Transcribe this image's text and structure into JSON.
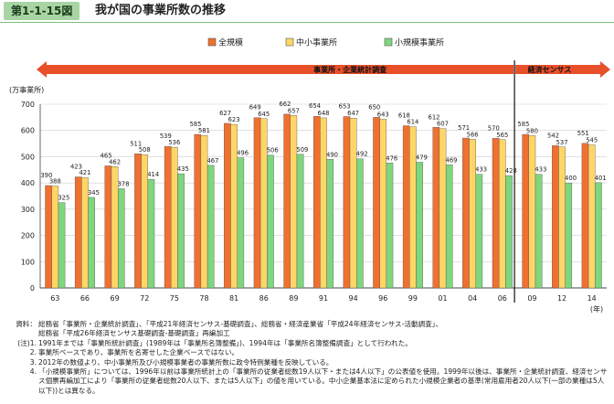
{
  "figure_label": "第1-1-15図",
  "figure_title": "我が国の事業所数の推移",
  "colors": {
    "accent_green": "#a8d5a3",
    "arrow_red": "#e8502a",
    "total": "#f07030",
    "sme": "#ffd666",
    "small": "#7ed67e"
  },
  "chart_data": {
    "type": "bar",
    "ylabel": "(万事業所)",
    "xlabel": "(年)",
    "ylim": [
      0,
      700
    ],
    "yticks": [
      0,
      100,
      200,
      300,
      400,
      500,
      600,
      700
    ],
    "grid": true,
    "legend": "top-center",
    "categories": [
      "63",
      "66",
      "69",
      "72",
      "75",
      "78",
      "81",
      "86",
      "89",
      "91",
      "94",
      "96",
      "99",
      "01",
      "04",
      "06",
      "09",
      "12",
      "14"
    ],
    "series": [
      {
        "name": "全規模",
        "values": [
          390,
          423,
          465,
          511,
          539,
          585,
          627,
          649,
          662,
          654,
          653,
          650,
          618,
          612,
          571,
          570,
          585,
          542,
          551
        ]
      },
      {
        "name": "中小事業所",
        "values": [
          388,
          421,
          462,
          508,
          536,
          581,
          623,
          645,
          657,
          648,
          647,
          643,
          614,
          607,
          566,
          565,
          580,
          537,
          545
        ]
      },
      {
        "name": "小規模事業所",
        "values": [
          325,
          345,
          378,
          414,
          435,
          467,
          496,
          506,
          509,
          490,
          492,
          476,
          479,
          469,
          433,
          428,
          433,
          400,
          401
        ]
      }
    ],
    "periods": [
      {
        "label": "事業所・企業統計調査",
        "from": "63",
        "to": "06"
      },
      {
        "label": "経済センサス",
        "from": "09",
        "to": "14"
      }
    ]
  },
  "notes": [
    {
      "label": "資料：",
      "text": "総務省「事業所・企業統計調査」、「平成21年経済センサス-基礎調査」、総務省・経済産業省「平成24年経済センサス-活動調査」、"
    },
    {
      "label": "",
      "text": "総務省「平成26年経済センサス基礎調査-基礎調査」再編加工"
    },
    {
      "label": "(注)1.",
      "text": "1991年までは「事業所統計調査」(1989年は「事業所名簿整備」)、1994年は「事業所名簿整備調査」として行われた。"
    },
    {
      "label": "2.",
      "text": "事業所ベースであり、事業所を名寄せした企業ベースではない。"
    },
    {
      "label": "3.",
      "text": "2012年の数値より、中小事業所及び小規模事業者の事業所数に政令特例業種を反映している。"
    },
    {
      "label": "4.",
      "text": "「小規模事業所」については、1996年以前は事業所統計上の「事業所の従業者総数19人以下・または4人以下」の公表値を使用。1999年以後は、事業所・企業統計調査、経済センサス個票再編加工により「事業所の従業者総数20人以下、または5人以下」の値を用いている。中小企業基本法に定められた小規模企業者の基準(常用雇用者20人以下(一部の業種は5人以下))とは異なる。"
    }
  ]
}
